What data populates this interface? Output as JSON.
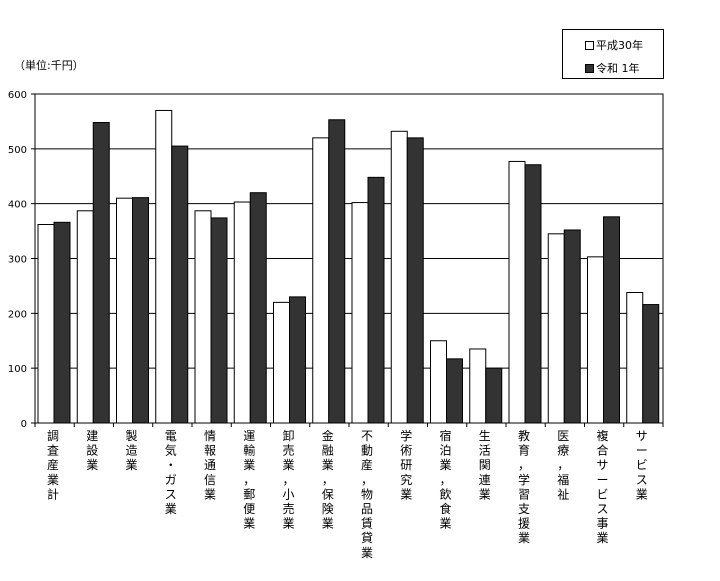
{
  "chart_data": {
    "type": "bar",
    "unit_label": "（単位:千円）",
    "categories": [
      "調査産業計",
      "建設業",
      "製造業",
      "電気・ガス業",
      "情報通信業",
      "運輸業，郵便業",
      "卸売業，小売業",
      "金融業，保険業",
      "不動産，物品賃貸業",
      "学術研究業",
      "宿泊業，飲食業",
      "生活関連業",
      "教育，学習支援業",
      "医療，福祉",
      "複合サービス事業",
      "サービス業"
    ],
    "series": [
      {
        "name": "平成30年",
        "color": "#ffffff",
        "values": [
          362,
          387,
          410,
          570,
          387,
          403,
          220,
          520,
          402,
          532,
          150,
          135,
          477,
          345,
          303,
          238
        ]
      },
      {
        "name": "令和 1年",
        "color": "#333333",
        "values": [
          366,
          548,
          411,
          505,
          374,
          420,
          230,
          553,
          448,
          520,
          117,
          100,
          471,
          352,
          376,
          216
        ]
      }
    ],
    "y_ticks": [
      "0",
      "100",
      "200",
      "300",
      "400",
      "500",
      "600"
    ],
    "ylim": [
      0,
      600
    ],
    "grid": true,
    "legend_position": "top-right"
  }
}
